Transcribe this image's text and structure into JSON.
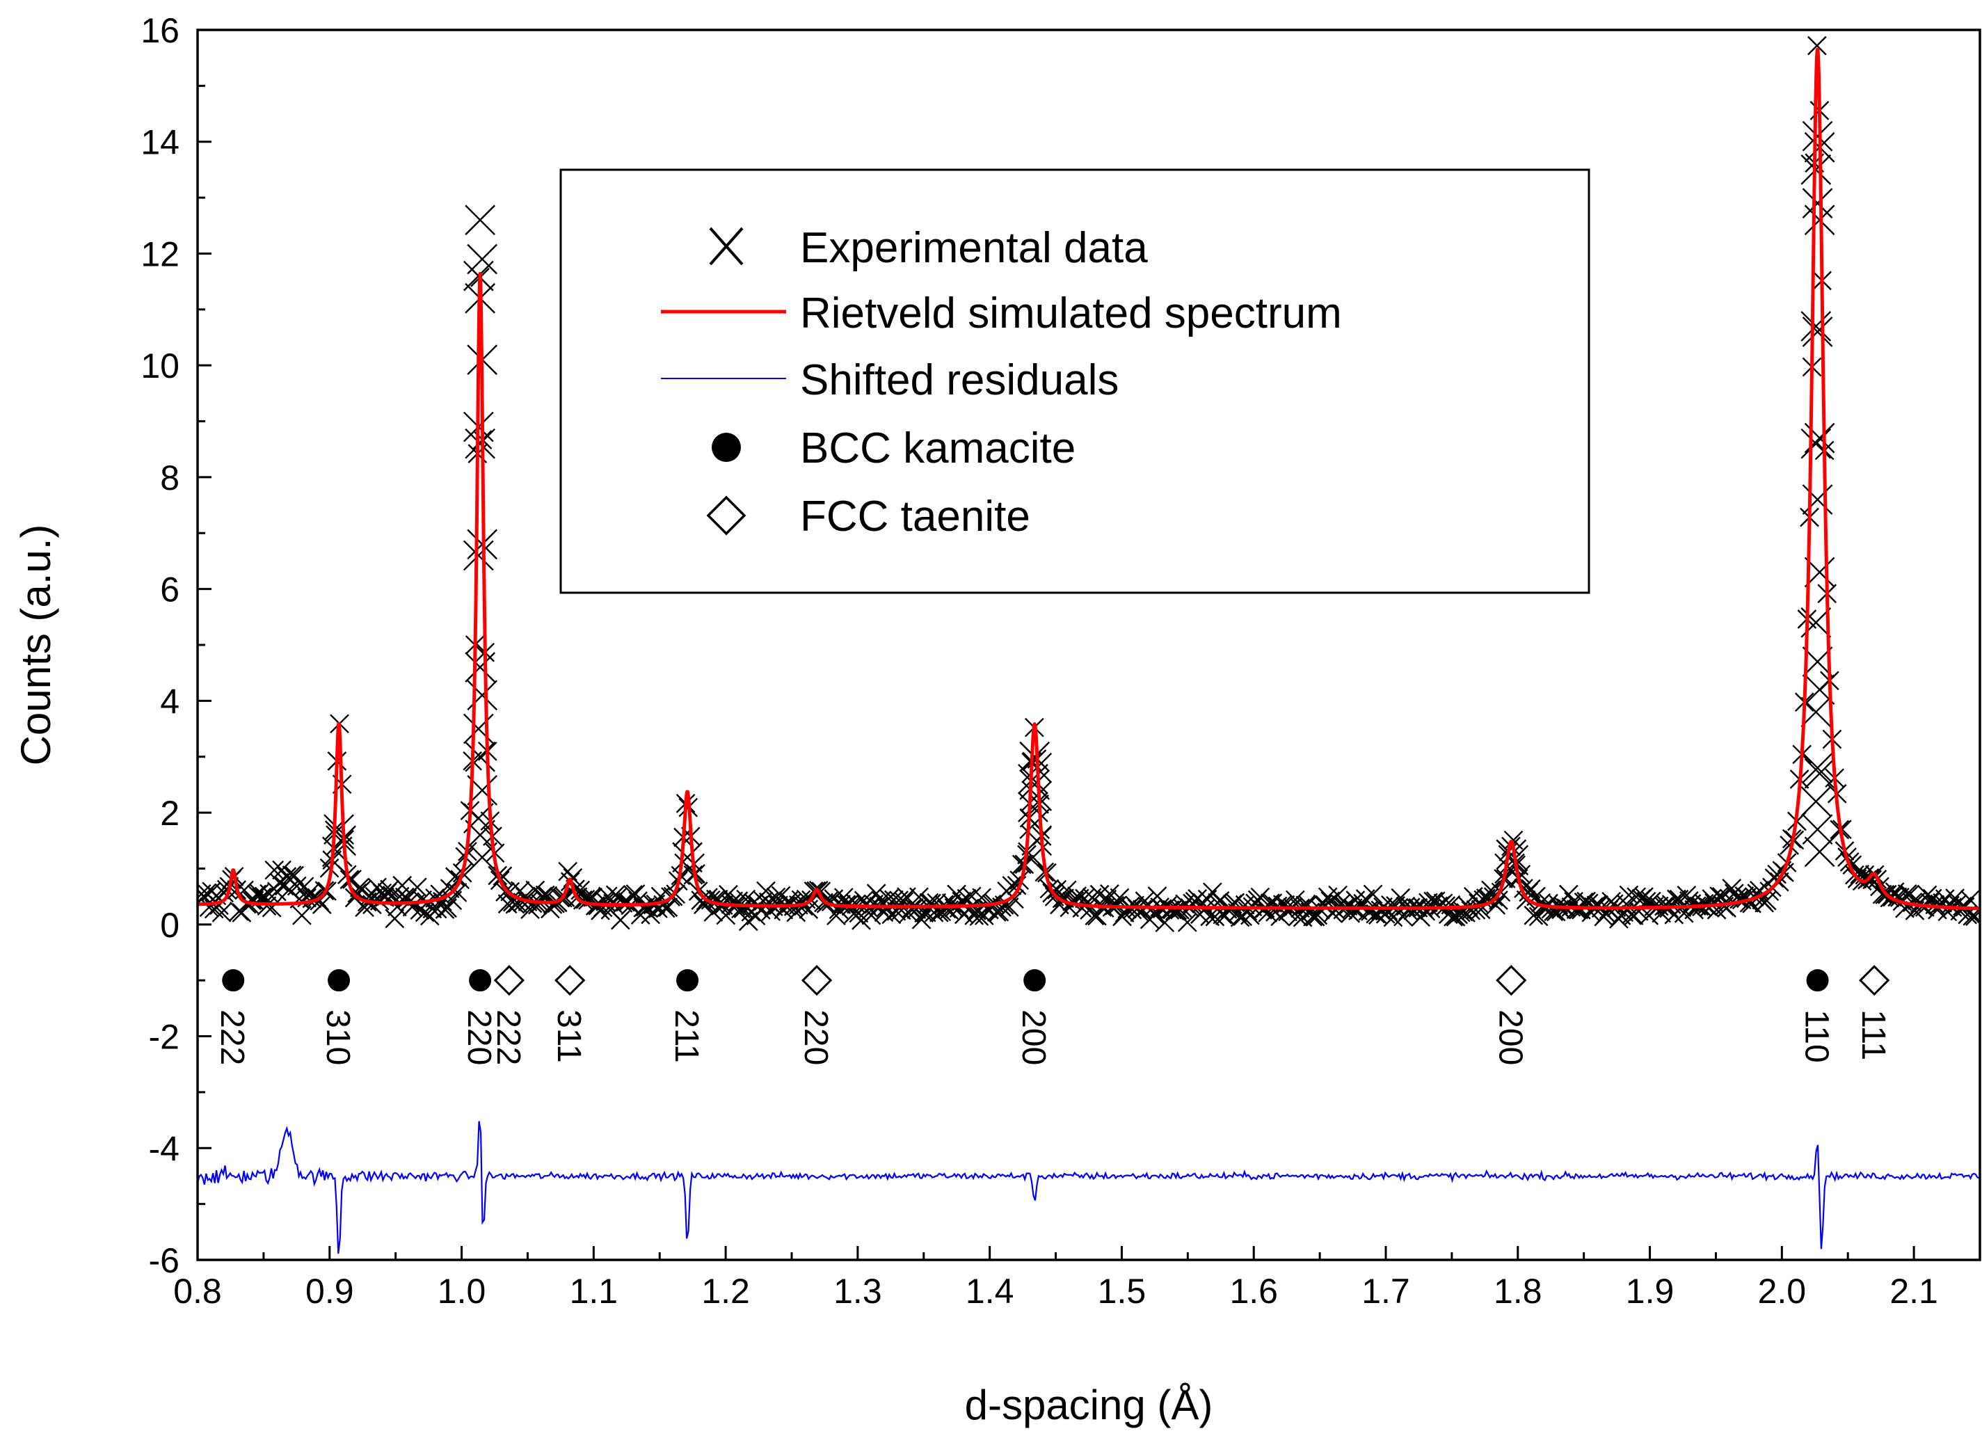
{
  "chart_data": {
    "type": "line",
    "title": "",
    "xlabel": "d-spacing (Å)",
    "ylabel": "Counts (a.u.)",
    "xlim": [
      0.8,
      2.15
    ],
    "ylim": [
      -6,
      16
    ],
    "x_ticks": [
      0.8,
      0.9,
      1.0,
      1.1,
      1.2,
      1.3,
      1.4,
      1.5,
      1.6,
      1.7,
      1.8,
      1.9,
      2.0,
      2.1
    ],
    "x_tick_labels": [
      "0.8",
      "0.9",
      "1.0",
      "1.1",
      "1.2",
      "1.3",
      "1.4",
      "1.5",
      "1.6",
      "1.7",
      "1.8",
      "1.9",
      "2.0",
      "2.1"
    ],
    "y_ticks": [
      -6,
      -4,
      -2,
      0,
      2,
      4,
      6,
      8,
      10,
      12,
      14,
      16
    ],
    "y_tick_labels": [
      "-6",
      "-4",
      "-2",
      "0",
      "2",
      "4",
      "6",
      "8",
      "10",
      "12",
      "14",
      "16"
    ],
    "grid": false,
    "legend": {
      "position": "top-center",
      "entries": [
        {
          "label": "Experimental data",
          "marker": "x",
          "color": "#000000"
        },
        {
          "label": "Rietveld simulated spectrum",
          "marker": "line",
          "color": "#ff0000"
        },
        {
          "label": "Shifted residuals",
          "marker": "line",
          "color": "#0000ff"
        },
        {
          "label": "BCC kamacite",
          "marker": "filled-circle",
          "color": "#000000"
        },
        {
          "label": "FCC taenite",
          "marker": "open-diamond",
          "color": "#000000"
        }
      ]
    },
    "background": {
      "x_start": 0.8,
      "y_start": 0.35,
      "x_end": 2.15,
      "y_end": 0.25
    },
    "series": [
      {
        "name": "Rietveld simulated spectrum",
        "color": "#ff0000",
        "peaks": [
          {
            "d": 0.827,
            "height": 0.62
          },
          {
            "d": 0.907,
            "height": 3.25
          },
          {
            "d": 1.014,
            "height": 11.3
          },
          {
            "d": 1.082,
            "height": 0.45
          },
          {
            "d": 1.171,
            "height": 2.05
          },
          {
            "d": 1.269,
            "height": 0.3
          },
          {
            "d": 1.434,
            "height": 3.28
          },
          {
            "d": 1.795,
            "height": 1.2
          },
          {
            "d": 2.027,
            "height": 15.4
          },
          {
            "d": 2.07,
            "height": 0.4
          }
        ]
      },
      {
        "name": "Experimental data",
        "color": "#000000",
        "peak_points": [
          {
            "d": 1.014,
            "values": [
              12.6,
              11.9,
              11.6,
              11.2,
              10.1,
              8.9,
              8.6,
              6.8,
              6.6,
              4.6,
              4.1,
              3.5,
              3.0,
              2.4,
              1.9,
              1.6,
              1.2
            ]
          },
          {
            "d": 2.027,
            "values": [
              14.1,
              13.9,
              13.5,
              12.9,
              12.6,
              10.7,
              10.6,
              8.7,
              8.6,
              7.6,
              6.3,
              5.4,
              4.7,
              4.2,
              3.8,
              2.8,
              2.7,
              2.2,
              1.7,
              1.3
            ]
          },
          {
            "d": 1.434,
            "values": [
              3.0,
              2.8,
              2.6,
              2.5,
              2.3,
              2.1,
              1.8,
              1.5,
              1.2
            ]
          },
          {
            "d": 0.907,
            "values": [
              1.7,
              1.5,
              1.3
            ]
          },
          {
            "d": 1.171,
            "values": [
              1.2,
              1.0
            ]
          },
          {
            "d": 1.795,
            "values": [
              1.25,
              1.15,
              1.0
            ]
          }
        ]
      },
      {
        "name": "Shifted residuals",
        "color": "#0000ff",
        "offset": -4.5,
        "features": [
          {
            "d": 0.868,
            "value": -3.65
          },
          {
            "d": 0.907,
            "value": -6.0
          },
          {
            "d": 1.014,
            "value": -3.15
          },
          {
            "d": 1.016,
            "value": -5.7
          },
          {
            "d": 1.171,
            "value": -5.75
          },
          {
            "d": 1.434,
            "value": -4.95
          },
          {
            "d": 2.027,
            "value": -3.9
          },
          {
            "d": 2.03,
            "value": -5.85
          }
        ]
      }
    ],
    "reflections": {
      "y": -1.0,
      "bcc_kamacite": [
        {
          "d": 0.827,
          "hkl": "222"
        },
        {
          "d": 0.907,
          "hkl": "310"
        },
        {
          "d": 1.014,
          "hkl": "220"
        },
        {
          "d": 1.171,
          "hkl": "211"
        },
        {
          "d": 1.434,
          "hkl": "200"
        },
        {
          "d": 2.027,
          "hkl": "110"
        }
      ],
      "fcc_taenite": [
        {
          "d": 1.036,
          "hkl": "222"
        },
        {
          "d": 1.082,
          "hkl": "311"
        },
        {
          "d": 1.269,
          "hkl": "220"
        },
        {
          "d": 1.795,
          "hkl": "200"
        },
        {
          "d": 2.07,
          "hkl": "111"
        }
      ]
    }
  }
}
